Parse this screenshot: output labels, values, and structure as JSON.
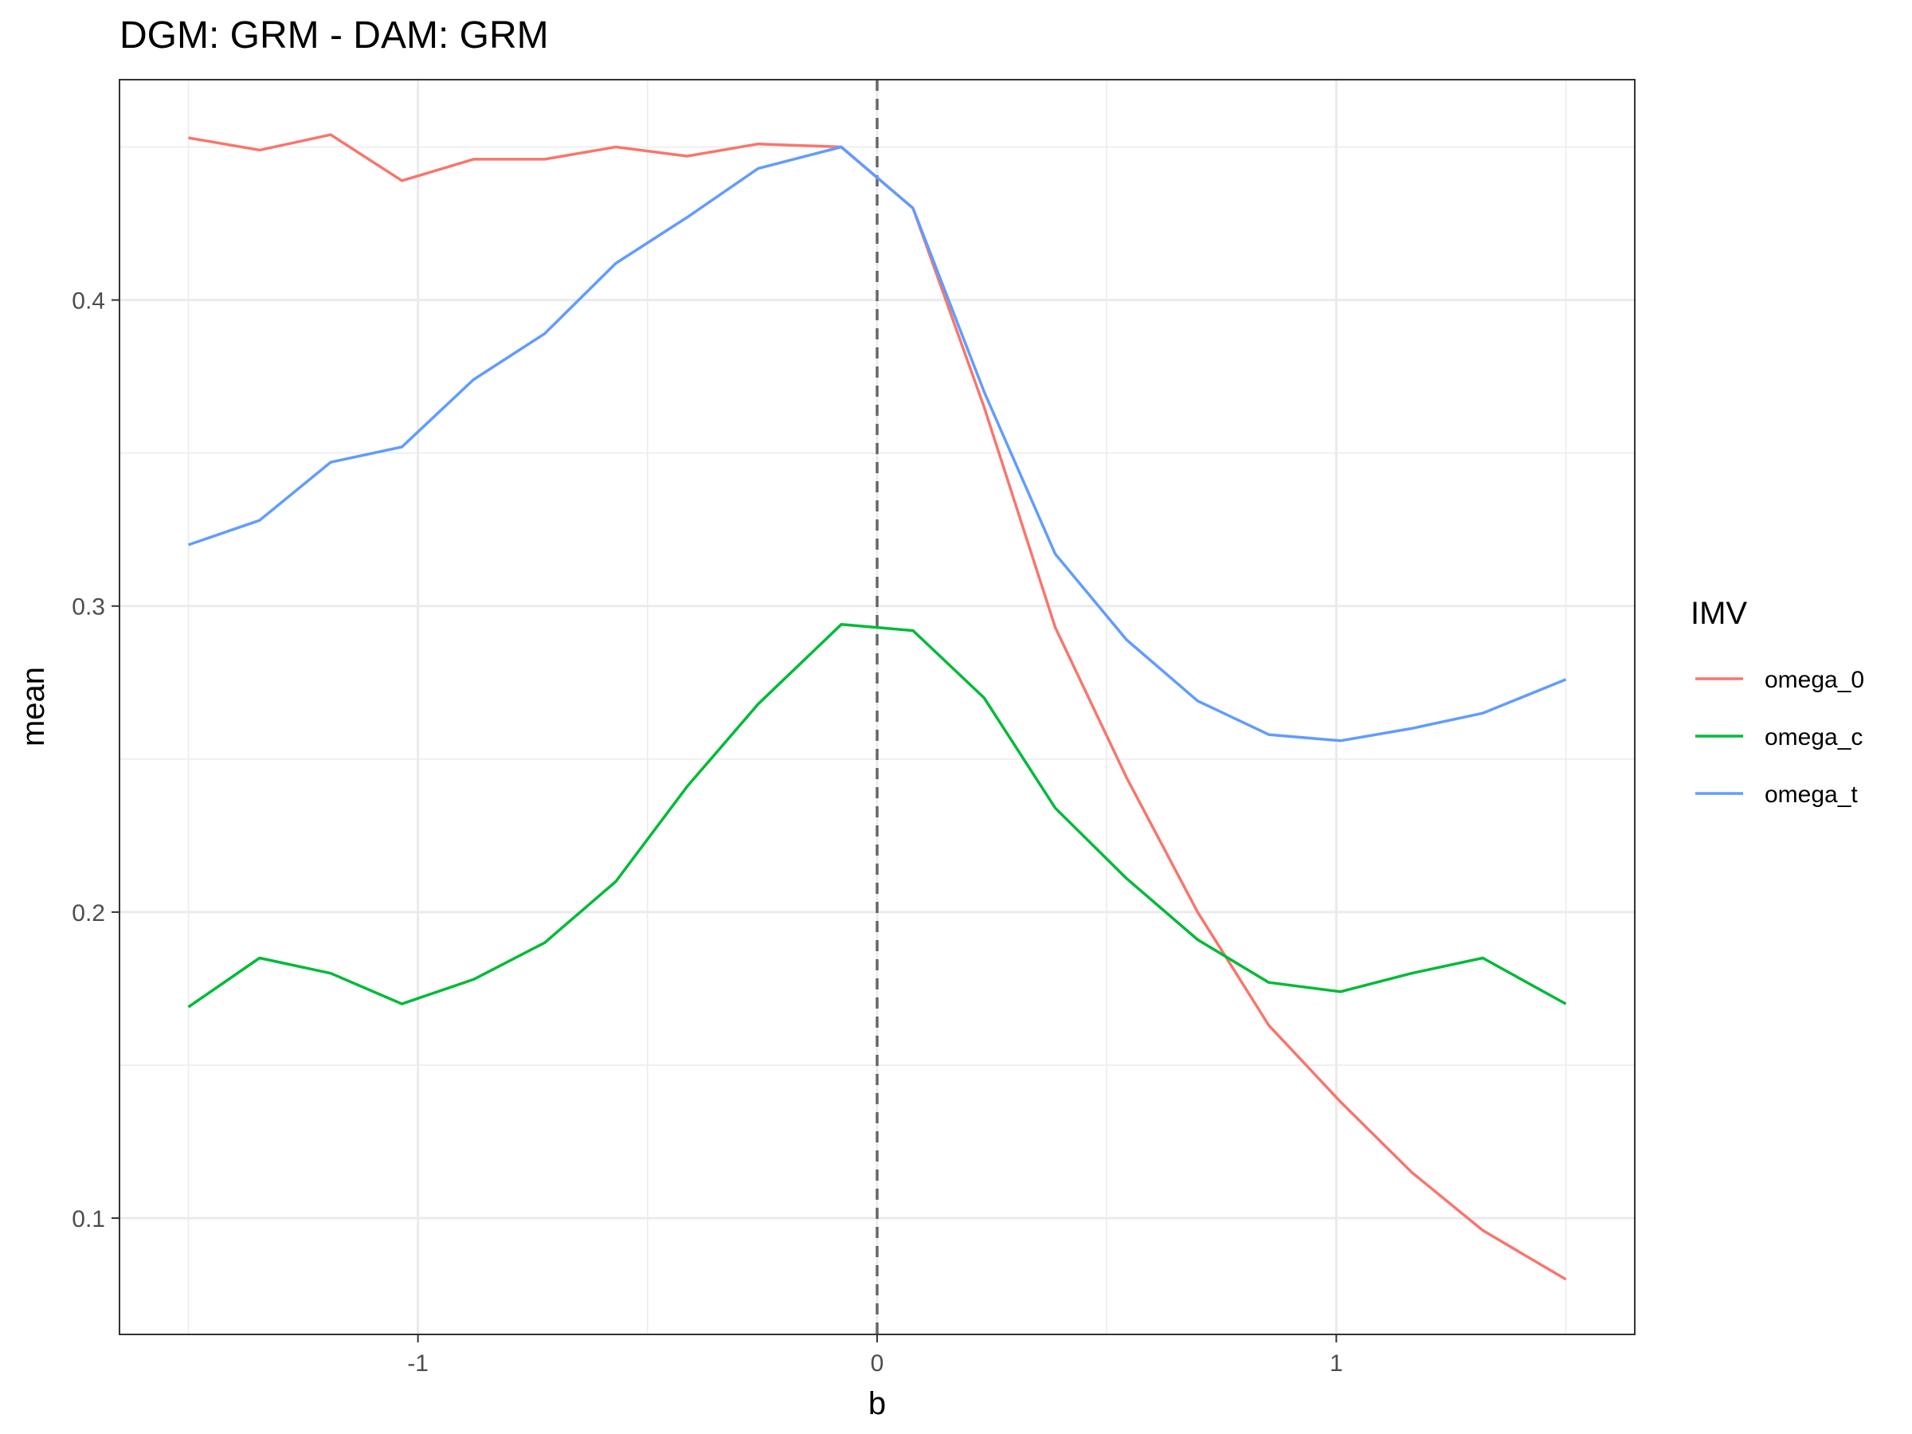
{
  "chart_data": {
    "type": "line",
    "title": "DGM: GRM - DAM: GRM",
    "xlabel": "b",
    "ylabel": "mean",
    "xlim": [
      -1.65,
      1.65
    ],
    "ylim": [
      0.062,
      0.472
    ],
    "x_ticks": [
      -1,
      0,
      1
    ],
    "x_tick_labels": [
      "-1",
      "0",
      "1"
    ],
    "y_ticks": [
      0.1,
      0.2,
      0.3,
      0.4
    ],
    "y_tick_labels": [
      "0.1",
      "0.2",
      "0.3",
      "0.4"
    ],
    "reference_line": {
      "axis": "x",
      "value": 0,
      "style": "dashed",
      "color": "#666666"
    },
    "grid": true,
    "legend": {
      "title": "IMV",
      "position": "right"
    },
    "x": [
      -1.5,
      -1.345,
      -1.19,
      -1.035,
      -0.879,
      -0.724,
      -0.569,
      -0.414,
      -0.259,
      -0.078,
      0.078,
      0.233,
      0.388,
      0.543,
      0.698,
      0.853,
      1.009,
      1.164,
      1.319,
      1.5
    ],
    "series": [
      {
        "name": "omega_0",
        "color": "#F8766D",
        "values": [
          0.453,
          0.449,
          0.454,
          0.439,
          0.446,
          0.446,
          0.45,
          0.447,
          0.451,
          0.45,
          0.43,
          0.365,
          0.293,
          0.244,
          0.2,
          0.163,
          0.138,
          0.115,
          0.096,
          0.08
        ]
      },
      {
        "name": "omega_c",
        "color": "#00BA38",
        "values": [
          0.169,
          0.185,
          0.18,
          0.17,
          0.178,
          0.19,
          0.21,
          0.241,
          0.268,
          0.294,
          0.292,
          0.27,
          0.234,
          0.211,
          0.191,
          0.177,
          0.174,
          0.18,
          0.185,
          0.17
        ]
      },
      {
        "name": "omega_t",
        "color": "#619CFF",
        "values": [
          0.32,
          0.328,
          0.347,
          0.352,
          0.374,
          0.389,
          0.412,
          0.427,
          0.443,
          0.45,
          0.43,
          0.37,
          0.317,
          0.289,
          0.269,
          0.258,
          0.256,
          0.26,
          0.265,
          0.276
        ]
      }
    ]
  }
}
